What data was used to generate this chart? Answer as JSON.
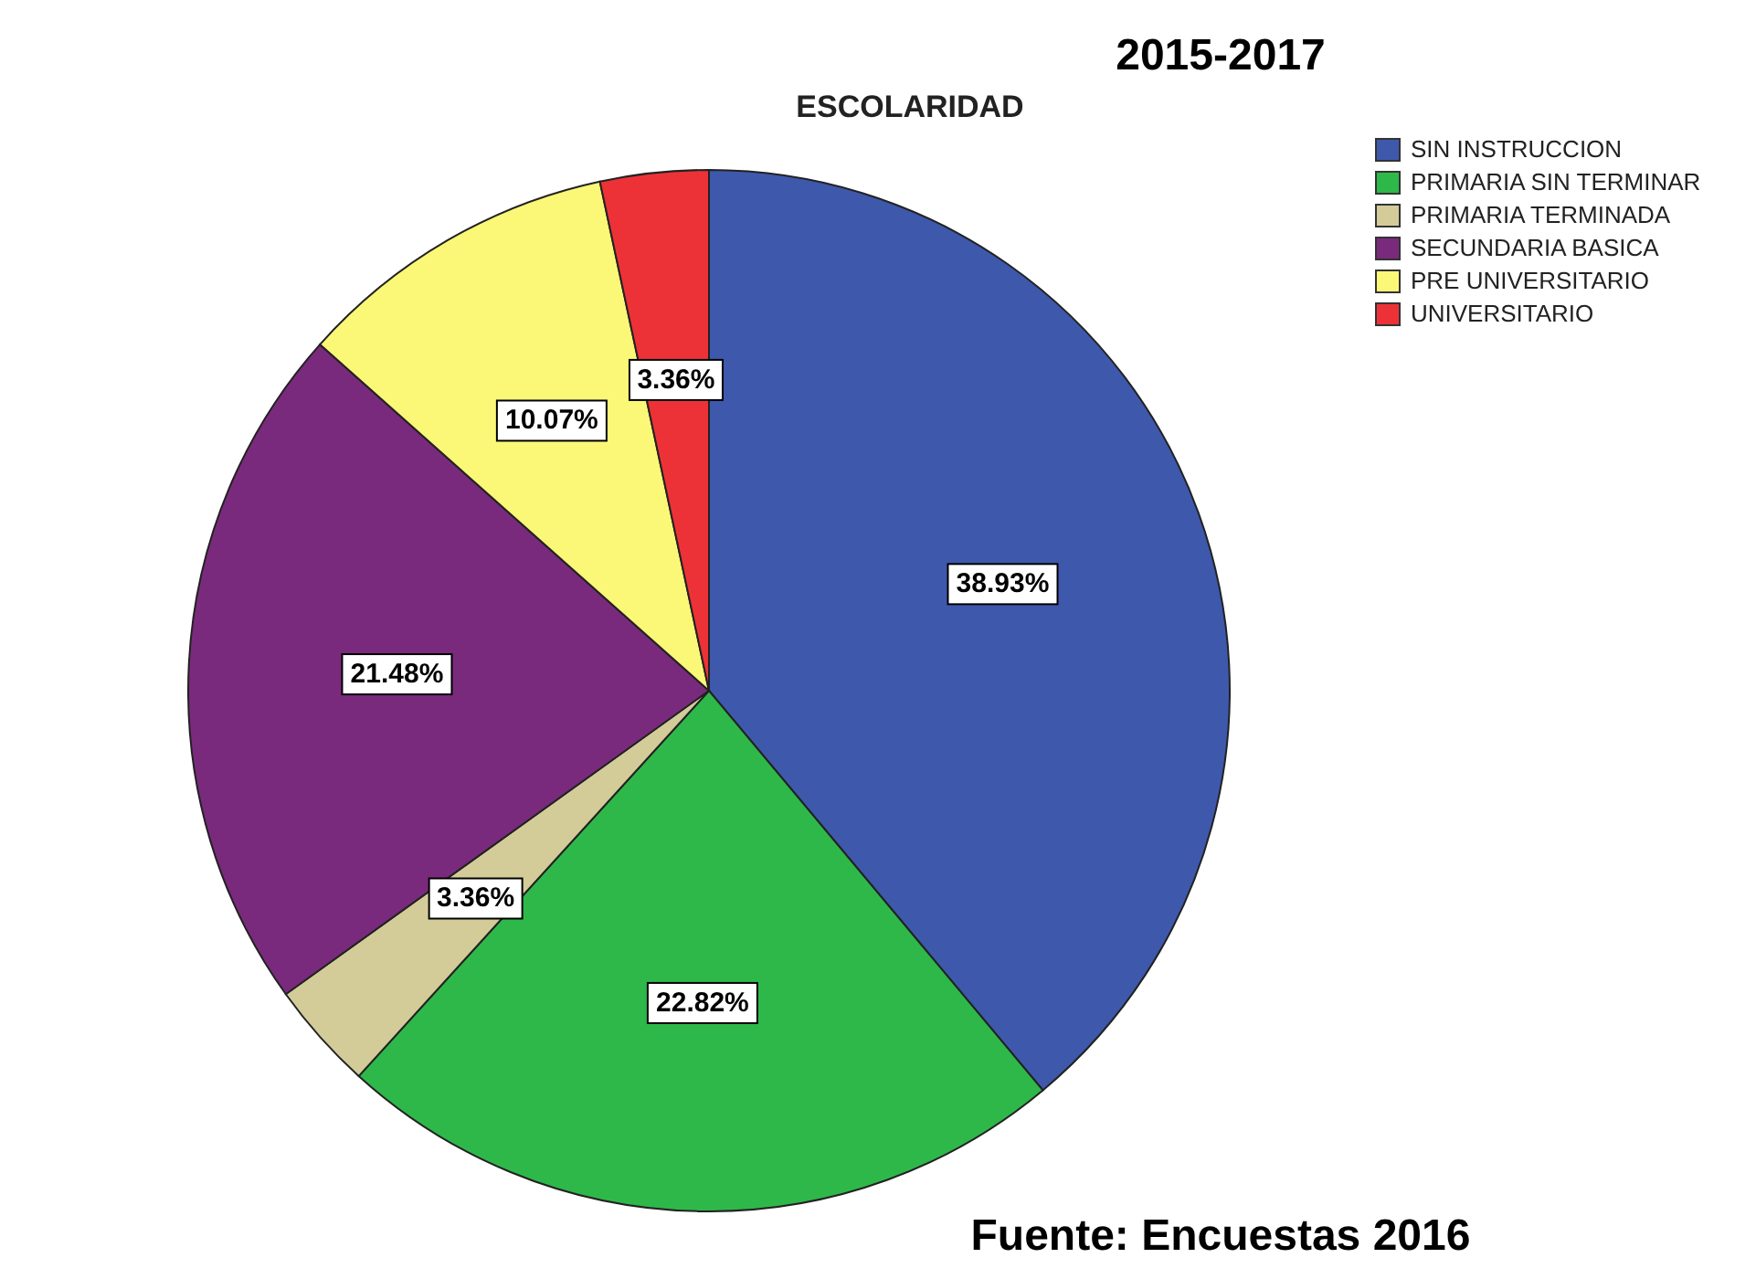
{
  "chart_data": {
    "type": "pie",
    "title": "ESCOLARIDAD",
    "subtitle": "2015-2017",
    "categories": [
      "SIN INSTRUCCION",
      "PRIMARIA SIN TERMINAR",
      "PRIMARIA TERMINADA",
      "SECUNDARIA BASICA",
      "PRE UNIVERSITARIO",
      "UNIVERSITARIO"
    ],
    "values": [
      38.93,
      22.82,
      3.36,
      21.48,
      10.07,
      3.36
    ],
    "value_labels": [
      "38.93%",
      "22.82%",
      "3.36%",
      "21.48%",
      "10.07%",
      "3.36%"
    ],
    "colors": [
      "#3e58ac",
      "#2fb84a",
      "#d3cc99",
      "#7a2a7c",
      "#fbf877",
      "#ed3237"
    ],
    "legend": "top right",
    "annotations": [
      "Fuente: Encuestas 2016"
    ]
  }
}
